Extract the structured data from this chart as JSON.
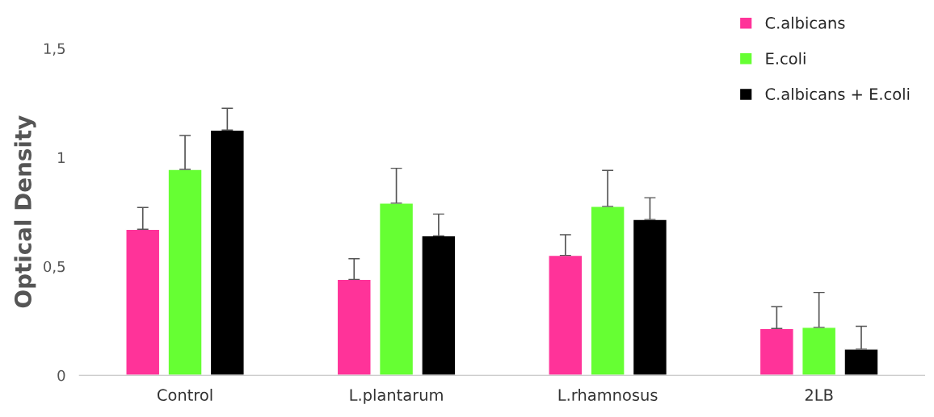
{
  "chart_data": {
    "type": "bar",
    "ylabel": "Optical Density",
    "categories": [
      "Control",
      "L.plantarum",
      "L.rhamnosus",
      "2LB"
    ],
    "series": [
      {
        "name": "C.albicans",
        "color": "#ff3399",
        "values": [
          0.67,
          0.44,
          0.55,
          0.215
        ],
        "errors": [
          [
            0.67,
            0.77
          ],
          [
            0.44,
            0.535
          ],
          [
            0.55,
            0.645
          ],
          [
            0.215,
            0.315
          ]
        ]
      },
      {
        "name": "E.coli",
        "color": "#66ff33",
        "values": [
          0.945,
          0.79,
          0.775,
          0.22
        ],
        "errors": [
          [
            0.945,
            1.1
          ],
          [
            0.79,
            0.95
          ],
          [
            0.775,
            0.94
          ],
          [
            0.22,
            0.38
          ]
        ]
      },
      {
        "name": "C.albicans + E.coli",
        "color": "#000000",
        "values": [
          1.125,
          0.64,
          0.715,
          0.12
        ],
        "errors": [
          [
            1.125,
            1.225
          ],
          [
            0.64,
            0.74
          ],
          [
            0.715,
            0.815
          ],
          [
            0.12,
            0.225
          ]
        ]
      }
    ],
    "ylim": [
      0,
      1.5
    ],
    "yticks": [
      0,
      {
        "value": 0.5,
        "label": "0,5"
      },
      1,
      {
        "value": 1.5,
        "label": "1,5"
      }
    ],
    "grid": false,
    "legend": "top right"
  }
}
